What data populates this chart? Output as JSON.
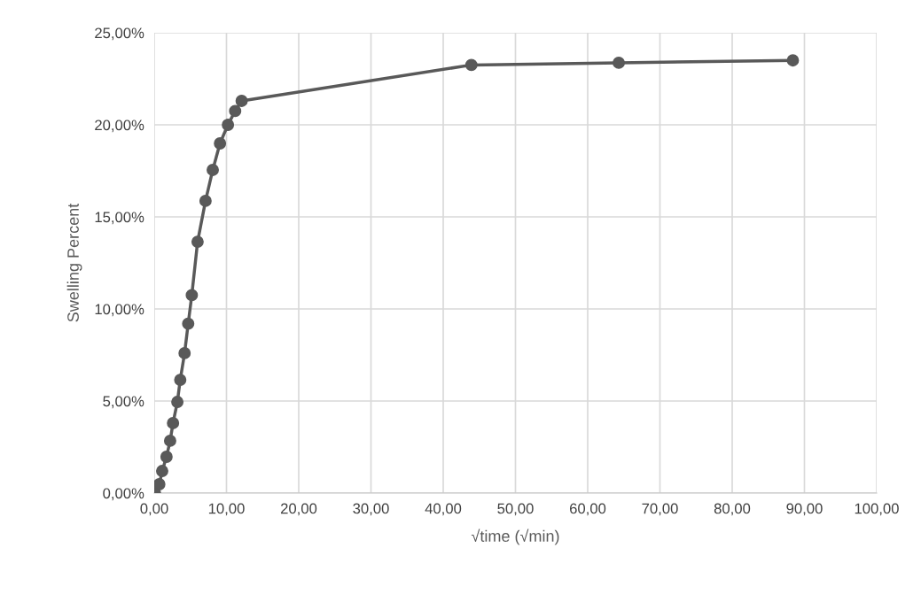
{
  "chart_data": {
    "type": "line",
    "xlabel": "√time (√min)",
    "ylabel": "Swelling Percent",
    "x": [
      0.1,
      0.7,
      1.1,
      1.7,
      2.2,
      2.6,
      3.2,
      3.6,
      4.2,
      4.7,
      5.2,
      6.0,
      7.1,
      8.1,
      9.1,
      10.2,
      11.2,
      12.1,
      43.9,
      64.3,
      88.4
    ],
    "series": [
      {
        "color": "#595959",
        "values": [
          0.0,
          0.48,
          1.2,
          1.97,
          2.84,
          3.8,
          4.95,
          6.15,
          7.6,
          9.2,
          10.75,
          13.65,
          15.87,
          17.55,
          18.99,
          20.0,
          20.75,
          21.3,
          23.25,
          23.37,
          23.5
        ]
      }
    ],
    "xlim": [
      0,
      100
    ],
    "ylim": [
      0,
      25
    ],
    "xticks": [
      {
        "value": 0,
        "label": "0,00"
      },
      {
        "value": 10,
        "label": "10,00"
      },
      {
        "value": 20,
        "label": "20,00"
      },
      {
        "value": 30,
        "label": "30,00"
      },
      {
        "value": 40,
        "label": "40,00"
      },
      {
        "value": 50,
        "label": "50,00"
      },
      {
        "value": 60,
        "label": "60,00"
      },
      {
        "value": 70,
        "label": "70,00"
      },
      {
        "value": 80,
        "label": "80,00"
      },
      {
        "value": 90,
        "label": "90,00"
      },
      {
        "value": 100,
        "label": "100,00"
      }
    ],
    "yticks": [
      {
        "value": 0,
        "label": "0,00%"
      },
      {
        "value": 5,
        "label": "5,00%"
      },
      {
        "value": 10,
        "label": "10,00%"
      },
      {
        "value": 15,
        "label": "15,00%"
      },
      {
        "value": 20,
        "label": "20,00%"
      },
      {
        "value": 25,
        "label": "25,00%"
      }
    ],
    "grid": true,
    "marker": "circle",
    "line_style": "solid",
    "legend": false
  }
}
